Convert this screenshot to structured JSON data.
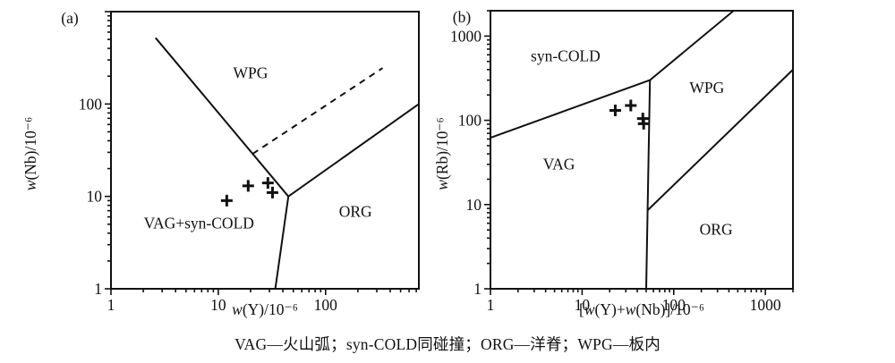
{
  "figure": {
    "background": "#ffffff",
    "ink_color": "#111111",
    "caption": "VAG—火山弧；syn-COLD同碰撞；ORG—洋脊；WPG—板内"
  },
  "chart_data": [
    {
      "type": "scatter",
      "panel_label": "(a)",
      "xlabel": "w(Y)/10⁻⁶",
      "ylabel": "w(Nb)/10⁻⁶",
      "x_scale": "log",
      "y_scale": "log",
      "xlim": [
        1,
        740
      ],
      "ylim": [
        1,
        1000
      ],
      "x_tick_labels": [
        1,
        10,
        100
      ],
      "y_tick_labels": [
        1,
        10,
        100
      ],
      "grid": false,
      "marker": "plus",
      "regions": [
        {
          "label": "WPG",
          "x": 20,
          "y": 190
        },
        {
          "label": "VAG+syn-COLD",
          "x": 6.6,
          "y": 4.5
        },
        {
          "label": "ORG",
          "x": 190,
          "y": 6
        }
      ],
      "boundaries": [
        {
          "name": "VAG+synCOLD/WPG",
          "style": "solid",
          "points": [
            [
              2.6,
              520
            ],
            [
              45,
              10
            ]
          ]
        },
        {
          "name": "VAG/ORG",
          "style": "solid",
          "points": [
            [
              45,
              10
            ],
            [
              34,
              1
            ]
          ]
        },
        {
          "name": "WPG/ORG",
          "style": "solid",
          "points": [
            [
              45,
              10
            ],
            [
              740,
              100
            ]
          ]
        },
        {
          "name": "WPG-inner-dashed",
          "style": "dashed",
          "points": [
            [
              21,
              29
            ],
            [
              340,
              245
            ]
          ]
        }
      ],
      "points": [
        {
          "x": 12,
          "y": 9
        },
        {
          "x": 19,
          "y": 13
        },
        {
          "x": 29,
          "y": 14
        },
        {
          "x": 32,
          "y": 11
        }
      ]
    },
    {
      "type": "scatter",
      "panel_label": "(b)",
      "xlabel": "[w(Y)+w(Nb)]/10⁻⁶",
      "ylabel": "w(Rb)/10⁻⁶",
      "x_scale": "log",
      "y_scale": "log",
      "xlim": [
        1,
        2000
      ],
      "ylim": [
        1,
        2000
      ],
      "x_tick_labels": [
        1,
        10,
        100,
        1000
      ],
      "y_tick_labels": [
        1,
        10,
        100,
        1000
      ],
      "grid": false,
      "marker": "plus",
      "regions": [
        {
          "label": "syn-COLD",
          "x": 6.6,
          "y": 500
        },
        {
          "label": "WPG",
          "x": 230,
          "y": 210
        },
        {
          "label": "VAG",
          "x": 5.6,
          "y": 26
        },
        {
          "label": "ORG",
          "x": 290,
          "y": 4.4
        }
      ],
      "boundaries": [
        {
          "name": "synCOLD/VAG",
          "style": "solid",
          "points": [
            [
              1,
              62
            ],
            [
              55,
              300
            ]
          ]
        },
        {
          "name": "synCOLD/WPG",
          "style": "solid",
          "points": [
            [
              55,
              300
            ],
            [
              450,
              2000
            ]
          ]
        },
        {
          "name": "VAG/ORG",
          "style": "solid",
          "points": [
            [
              55,
              300
            ],
            [
              50,
              1
            ]
          ]
        },
        {
          "name": "ORG/WPG",
          "style": "solid",
          "points": [
            [
              51.7,
              8.5
            ],
            [
              2000,
              400
            ]
          ]
        }
      ],
      "points": [
        {
          "x": 23,
          "y": 131
        },
        {
          "x": 34,
          "y": 150
        },
        {
          "x": 46,
          "y": 105
        },
        {
          "x": 47,
          "y": 91
        }
      ]
    }
  ]
}
